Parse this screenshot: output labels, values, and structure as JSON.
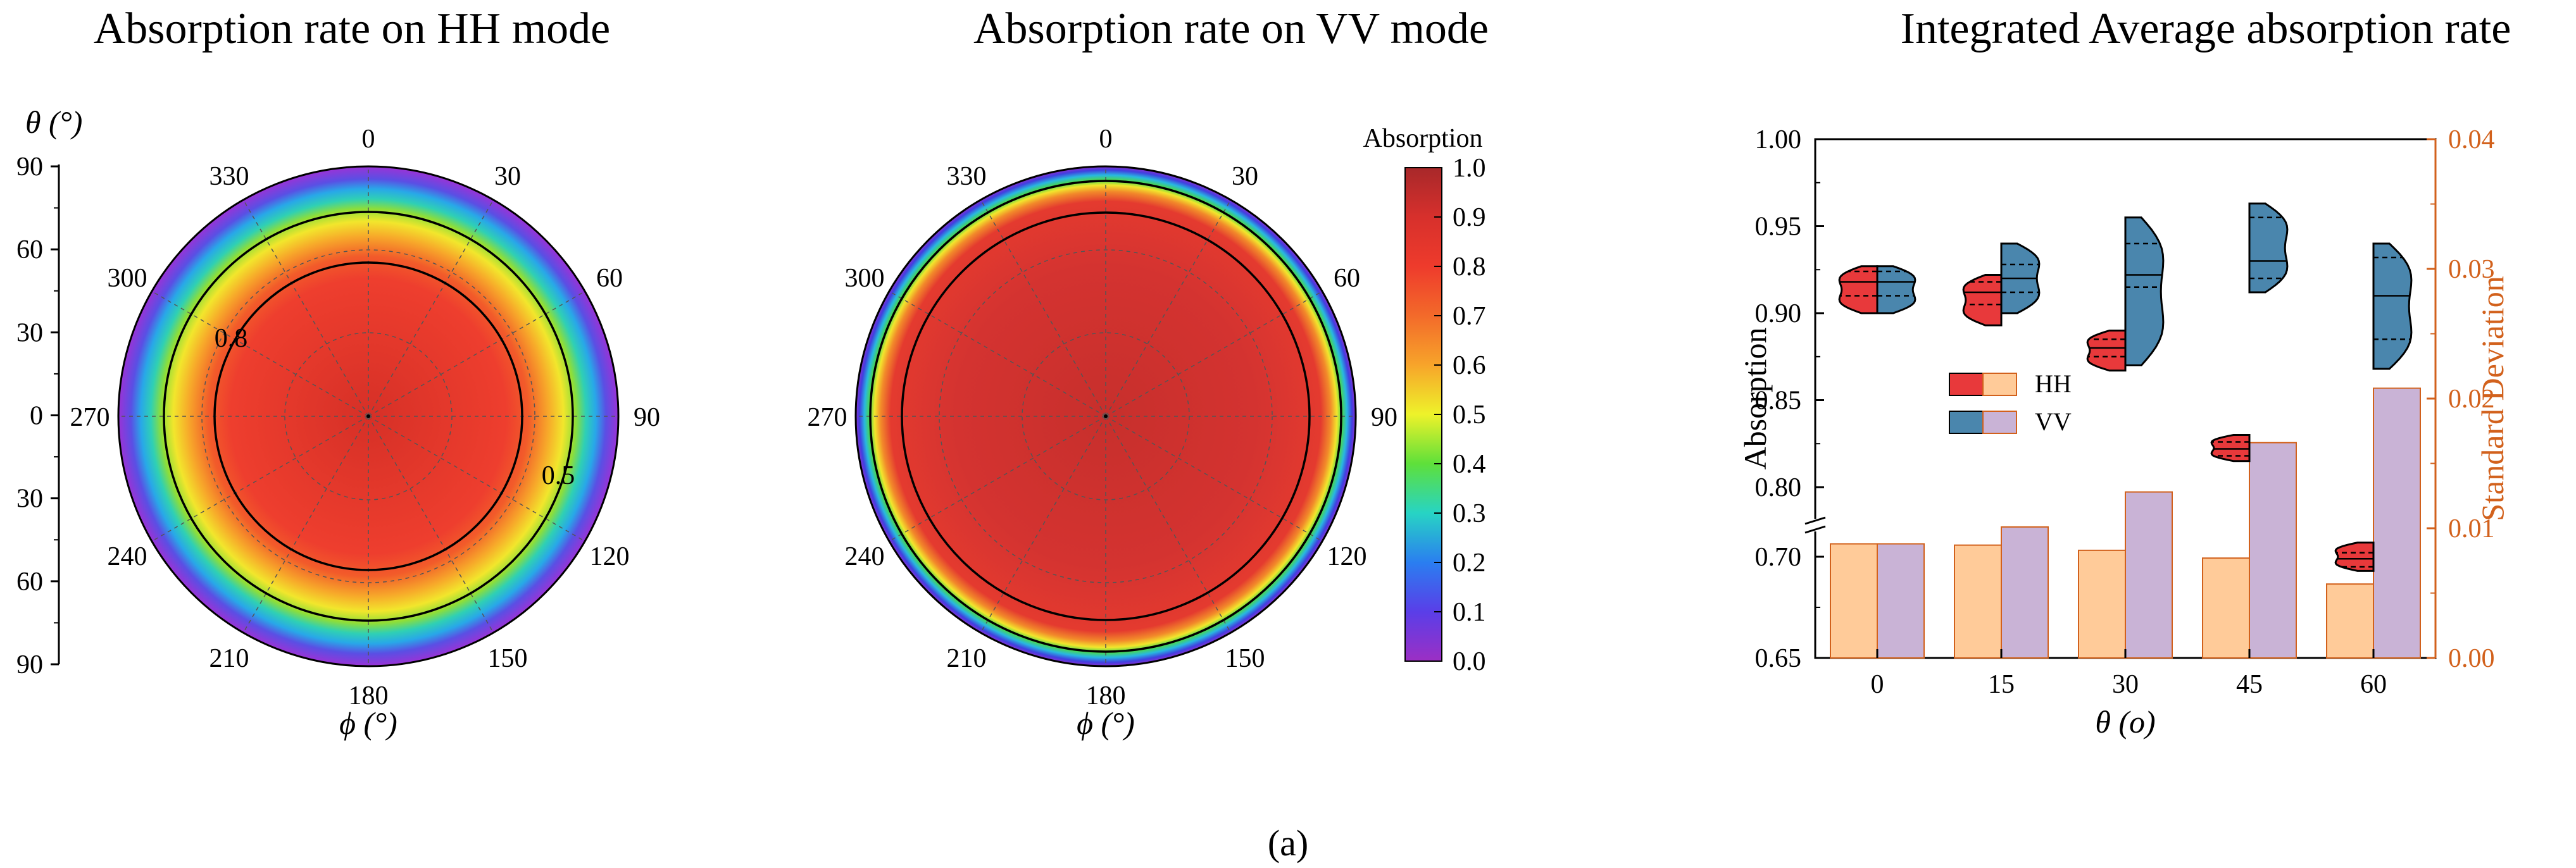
{
  "panels": {
    "hh_title": "Absorption rate on HH mode",
    "vv_title": "Absorption rate on VV mode",
    "avg_title": "Integrated Average absorption rate"
  },
  "polar": {
    "phi_ticks": [
      "0",
      "30",
      "60",
      "90",
      "120",
      "150",
      "180",
      "210",
      "240",
      "270",
      "300",
      "330"
    ],
    "phi_label": "ϕ (°)",
    "theta_label": "θ (°)",
    "theta_ticks": [
      "90",
      "60",
      "30",
      "0",
      "30",
      "60",
      "90"
    ],
    "hh_contour_labels": [
      "0.8",
      "0.5"
    ]
  },
  "colorbar": {
    "title": "Absorption",
    "ticks": [
      "1.0",
      "0.9",
      "0.8",
      "0.7",
      "0.6",
      "0.5",
      "0.4",
      "0.3",
      "0.2",
      "0.1",
      "0.0"
    ]
  },
  "colors": {
    "hh_fill": "#e8393b",
    "vv_fill": "#4a86ad",
    "hh_bar": "#ffcb99",
    "vv_bar": "#c9b3d6",
    "bar_edge": "#d2611c",
    "axis_right": "#d2611c"
  },
  "legend": {
    "hh": "HH",
    "vv": "VV"
  },
  "caption": "(a)",
  "chart_data": [
    {
      "type": "heatmap",
      "name": "HH polar absorption",
      "title": "Absorption rate on HH mode",
      "coords": "polar (phi azimuth, theta radial)",
      "phi_range": [
        0,
        360
      ],
      "theta_range": [
        0,
        90
      ],
      "contour_levels": [
        0.8,
        0.5
      ],
      "center_value": 0.95,
      "edge_value": 0.05
    },
    {
      "type": "heatmap",
      "name": "VV polar absorption",
      "title": "Absorption rate on VV mode",
      "coords": "polar (phi azimuth, theta radial)",
      "phi_range": [
        0,
        360
      ],
      "theta_range": [
        0,
        90
      ],
      "colorbar_range": [
        0.0,
        1.0
      ],
      "center_value": 0.92,
      "edge_value": 0.05
    },
    {
      "type": "bar",
      "title": "Integrated Average absorption rate",
      "xlabel": "θ (o)",
      "ylabel": "Absorption",
      "y2label": "Standard Deviation",
      "categories": [
        "0",
        "15",
        "30",
        "45",
        "60"
      ],
      "ylim": [
        0.65,
        1.0
      ],
      "y_ticks": [
        "0.65",
        "0.70",
        "0.80",
        "0.85",
        "0.90",
        "0.95",
        "1.00"
      ],
      "y2lim": [
        0.0,
        0.04
      ],
      "y2_ticks": [
        "0.00",
        "0.01",
        "0.02",
        "0.03",
        "0.04"
      ],
      "series": [
        {
          "name": "HH",
          "kind": "std_bar",
          "values": [
            0.0088,
            0.0087,
            0.0083,
            0.0077,
            0.0057
          ]
        },
        {
          "name": "VV",
          "kind": "std_bar",
          "values": [
            0.0088,
            0.0101,
            0.0128,
            0.0166,
            0.0208
          ]
        },
        {
          "name": "HH",
          "kind": "violin",
          "min": [
            0.9,
            0.893,
            0.867,
            0.815,
            0.693
          ],
          "max": [
            0.927,
            0.922,
            0.89,
            0.83,
            0.707
          ],
          "q1": [
            0.91,
            0.905,
            0.875,
            0.818,
            0.695
          ],
          "median": [
            0.918,
            0.912,
            0.88,
            0.822,
            0.699
          ],
          "q3": [
            0.924,
            0.918,
            0.885,
            0.826,
            0.702
          ]
        },
        {
          "name": "VV",
          "kind": "violin",
          "min": [
            0.9,
            0.9,
            0.87,
            0.912,
            0.868
          ],
          "max": [
            0.927,
            0.94,
            0.955,
            0.963,
            0.94
          ],
          "q1": [
            0.91,
            0.912,
            0.915,
            0.92,
            0.885
          ],
          "median": [
            0.918,
            0.92,
            0.922,
            0.93,
            0.91
          ],
          "q3": [
            0.924,
            0.928,
            0.94,
            0.955,
            0.932
          ]
        }
      ]
    }
  ]
}
